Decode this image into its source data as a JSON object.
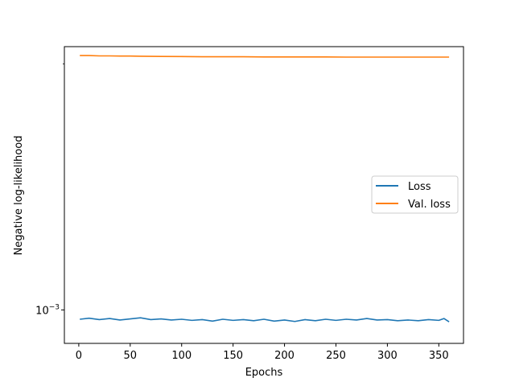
{
  "chart_data": {
    "type": "line",
    "title": "",
    "xlabel": "Epochs",
    "ylabel": "Negative log-likelihood",
    "xlim": [
      -14,
      374
    ],
    "ylim": [
      0.00091,
      0.0021
    ],
    "yscale": "log",
    "xticks": [
      0,
      50,
      100,
      150,
      200,
      250,
      300,
      350
    ],
    "yticks": [
      {
        "value": 0.001,
        "base": "10",
        "exp": "−3"
      }
    ],
    "grid": false,
    "legend": "center-right",
    "series": [
      {
        "name": "Loss",
        "color": "#1f77b4",
        "x": [
          1,
          10,
          20,
          30,
          40,
          50,
          60,
          70,
          80,
          90,
          100,
          110,
          120,
          130,
          140,
          150,
          160,
          170,
          180,
          190,
          200,
          210,
          220,
          230,
          240,
          250,
          260,
          270,
          280,
          290,
          300,
          310,
          320,
          330,
          340,
          350,
          355,
          360
        ],
        "values": [
          0.000974,
          0.000977,
          0.000973,
          0.000976,
          0.000972,
          0.000975,
          0.000978,
          0.000973,
          0.000975,
          0.000972,
          0.000974,
          0.000971,
          0.000973,
          0.000969,
          0.000974,
          0.000971,
          0.000973,
          0.00097,
          0.000974,
          0.000969,
          0.000972,
          0.000968,
          0.000973,
          0.00097,
          0.000974,
          0.000971,
          0.000974,
          0.000972,
          0.000976,
          0.000972,
          0.000973,
          0.00097,
          0.000972,
          0.00097,
          0.000973,
          0.000971,
          0.000976,
          0.000967
        ]
      },
      {
        "name": "Val. loss",
        "color": "#ff7f0e",
        "x": [
          1,
          10,
          20,
          30,
          40,
          50,
          60,
          80,
          100,
          120,
          140,
          160,
          180,
          200,
          220,
          240,
          260,
          280,
          300,
          320,
          340,
          360
        ],
        "values": [
          0.002048,
          0.002048,
          0.002046,
          0.002046,
          0.002045,
          0.002045,
          0.002044,
          0.002043,
          0.002042,
          0.002041,
          0.002041,
          0.002041,
          0.00204,
          0.00204,
          0.00204,
          0.00204,
          0.002039,
          0.002039,
          0.002039,
          0.002039,
          0.002039,
          0.002039
        ]
      }
    ]
  }
}
